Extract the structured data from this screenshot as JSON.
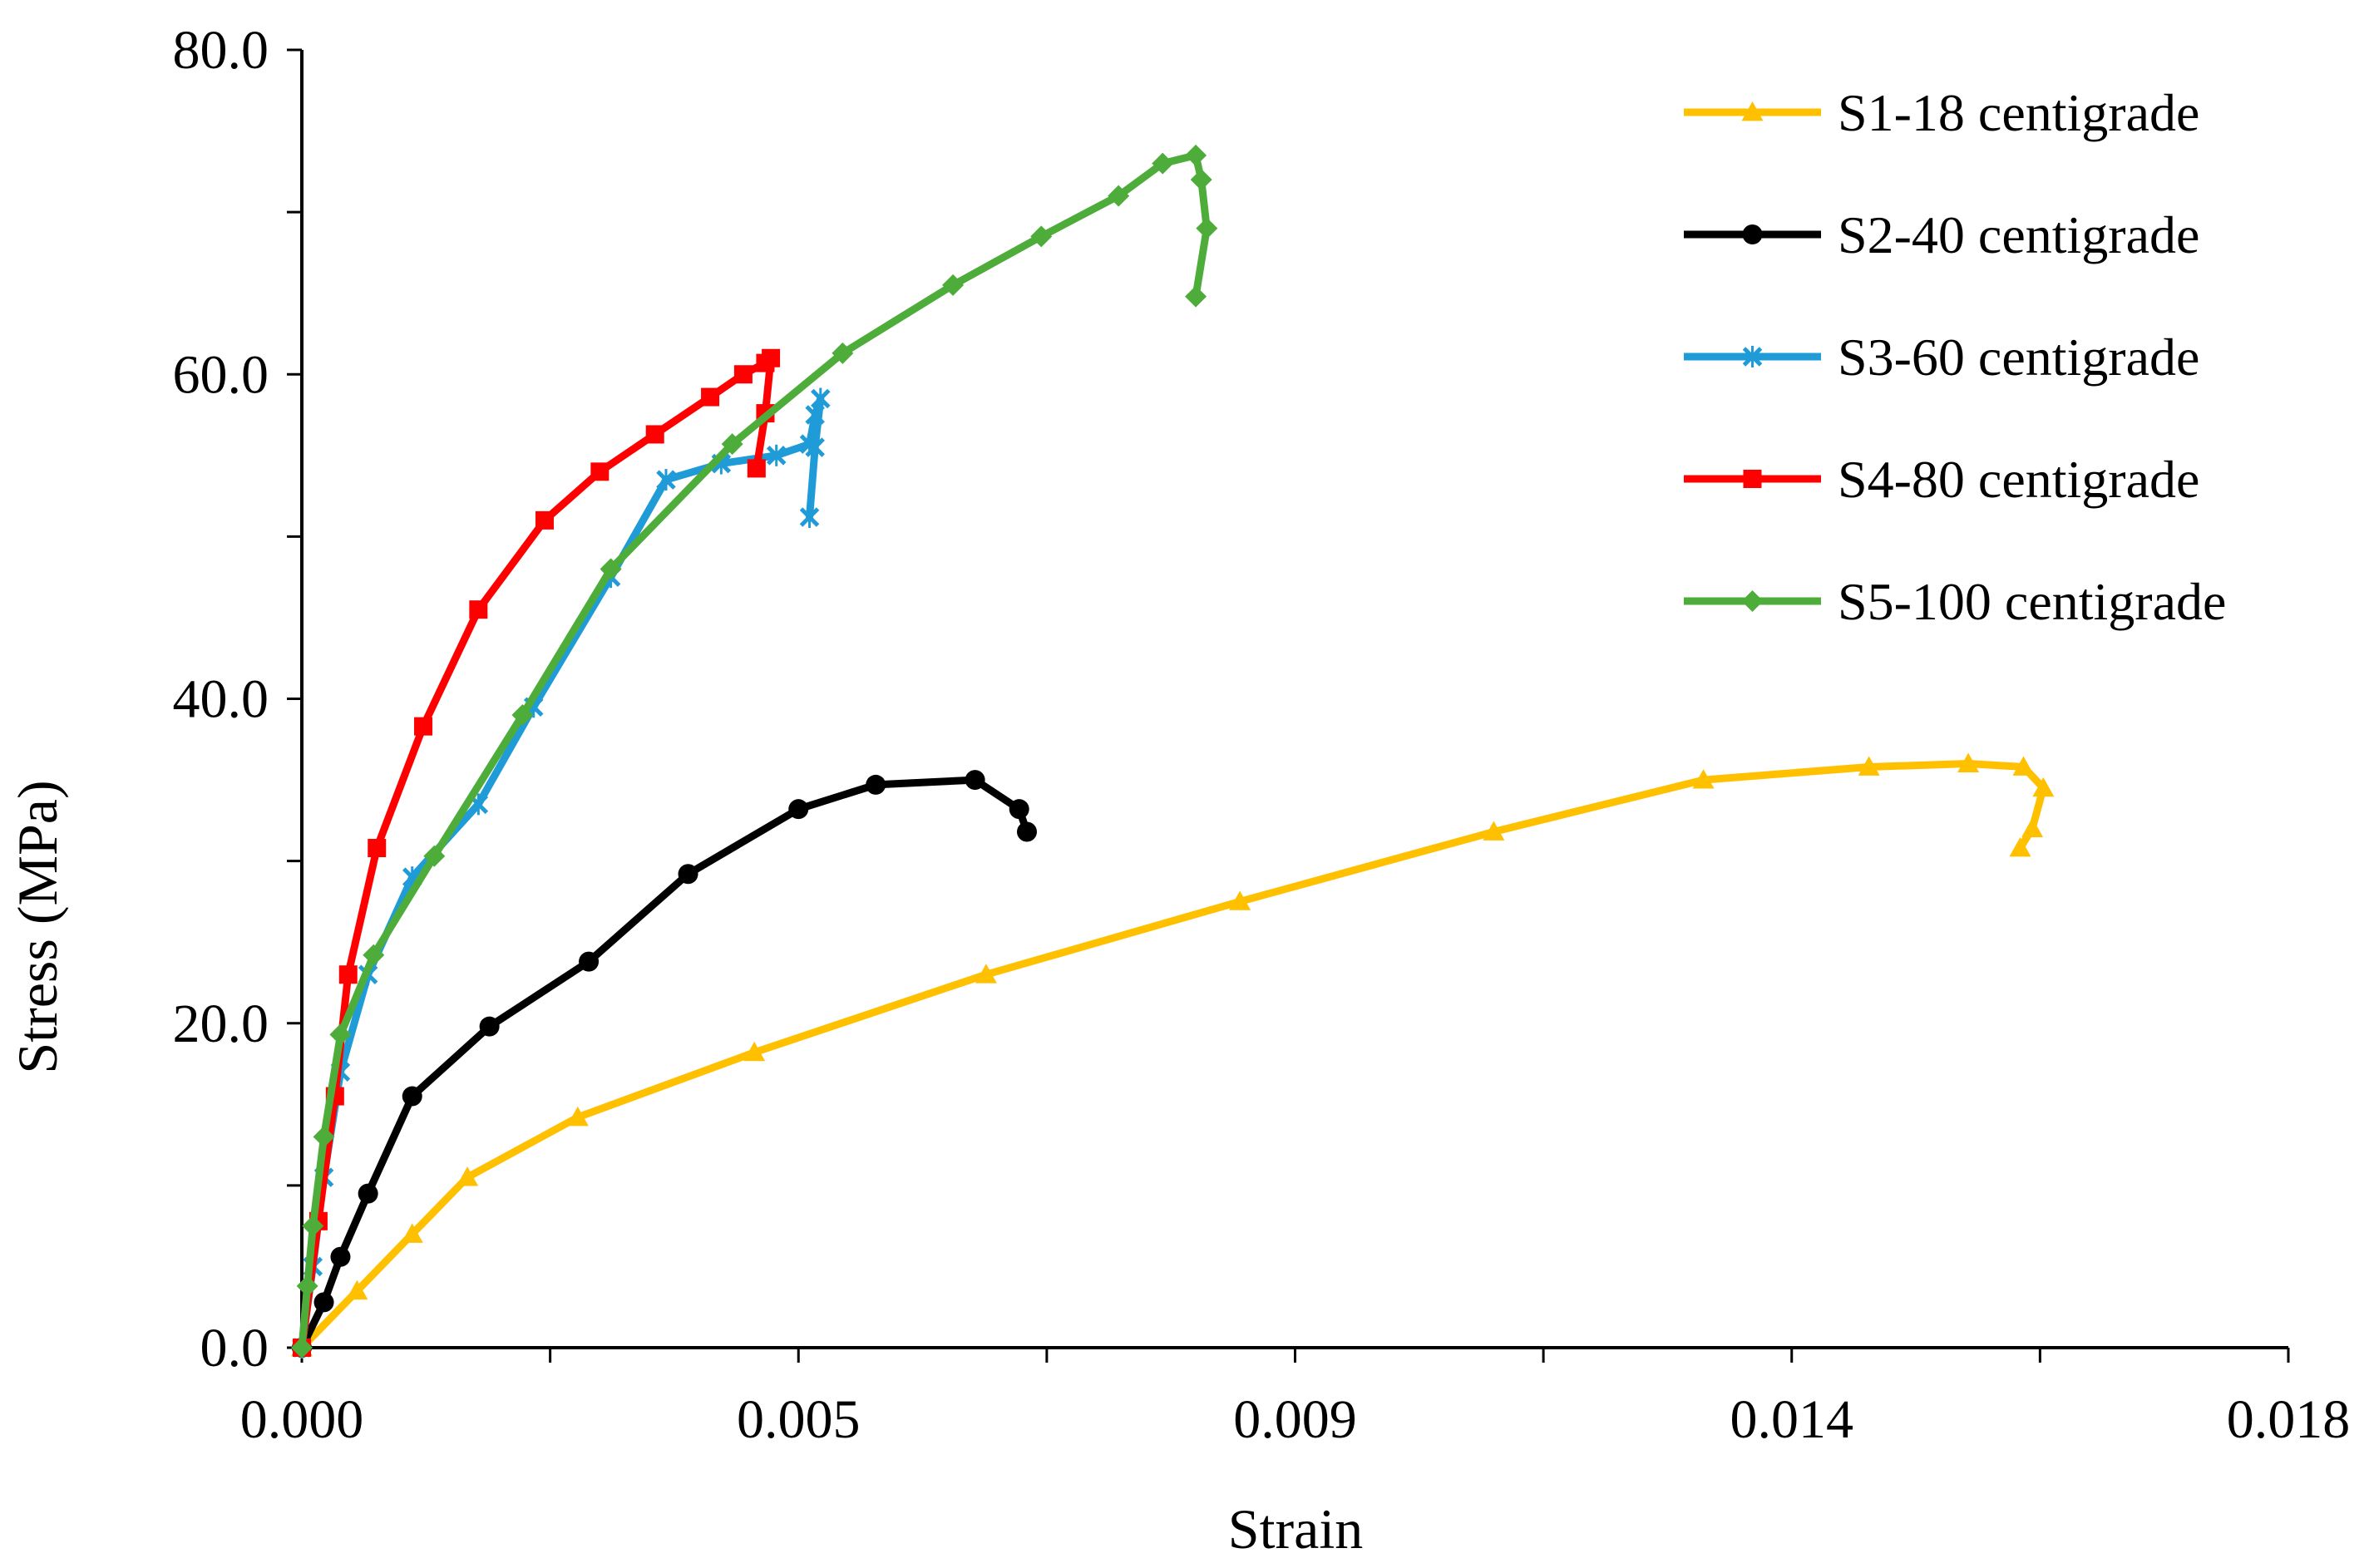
{
  "chart_data": {
    "type": "line",
    "title": "",
    "xlabel": "Strain",
    "ylabel": "Stress (MPa)",
    "xlim": [
      0.0,
      0.018
    ],
    "ylim": [
      0.0,
      80.0
    ],
    "x_major_ticks": [
      0.0,
      0.0045,
      0.009,
      0.0135,
      0.018
    ],
    "x_tick_labels": [
      "0.000",
      "0.005",
      "0.009",
      "0.014",
      "0.018"
    ],
    "y_major_ticks": [
      0,
      20,
      40,
      60,
      80
    ],
    "y_tick_labels": [
      "0.0",
      "20.0",
      "40.0",
      "60.0",
      "80.0"
    ],
    "grid": false,
    "legend_position": "top-right",
    "series": [
      {
        "name": "S1-18 centigrade",
        "color": "#FFC000",
        "marker": "triangle",
        "points": [
          [
            0.0,
            0.0
          ],
          [
            0.0005,
            3.5
          ],
          [
            0.001,
            7.0
          ],
          [
            0.0015,
            10.5
          ],
          [
            0.0025,
            14.2
          ],
          [
            0.0041,
            18.2
          ],
          [
            0.0062,
            23.0
          ],
          [
            0.0085,
            27.5
          ],
          [
            0.0108,
            31.8
          ],
          [
            0.0127,
            35.0
          ],
          [
            0.0142,
            35.8
          ],
          [
            0.0151,
            36.0
          ],
          [
            0.0156,
            35.8
          ],
          [
            0.01578,
            34.5
          ],
          [
            0.01568,
            32.0
          ],
          [
            0.01557,
            30.8
          ]
        ]
      },
      {
        "name": "S2-40 centigrade",
        "color": "#000000",
        "marker": "circle",
        "points": [
          [
            0.0,
            0.0
          ],
          [
            0.0002,
            2.8
          ],
          [
            0.00035,
            5.6
          ],
          [
            0.0006,
            9.5
          ],
          [
            0.001,
            15.5
          ],
          [
            0.0017,
            19.8
          ],
          [
            0.0026,
            23.8
          ],
          [
            0.0035,
            29.2
          ],
          [
            0.0045,
            33.2
          ],
          [
            0.0052,
            34.7
          ],
          [
            0.0061,
            35.0
          ],
          [
            0.0065,
            33.2
          ],
          [
            0.00657,
            31.8
          ]
        ]
      },
      {
        "name": "S3-60 centigrade",
        "color": "#1F9BD7",
        "marker": "x",
        "points": [
          [
            0.0,
            0.0
          ],
          [
            0.0001,
            5.0
          ],
          [
            0.0002,
            10.5
          ],
          [
            0.00035,
            17.0
          ],
          [
            0.0006,
            23.0
          ],
          [
            0.001,
            29.0
          ],
          [
            0.0016,
            33.5
          ],
          [
            0.0021,
            39.5
          ],
          [
            0.0028,
            47.5
          ],
          [
            0.0033,
            53.5
          ],
          [
            0.0038,
            54.5
          ],
          [
            0.0043,
            55.0
          ],
          [
            0.0046,
            55.7
          ],
          [
            0.00465,
            57.5
          ],
          [
            0.0047,
            58.5
          ],
          [
            0.00465,
            55.5
          ],
          [
            0.0046,
            51.2
          ]
        ]
      },
      {
        "name": "S4-80 centigrade",
        "color": "#FF0000",
        "marker": "square",
        "points": [
          [
            0.0,
            0.0
          ],
          [
            0.00015,
            7.8
          ],
          [
            0.0003,
            15.5
          ],
          [
            0.00042,
            23.0
          ],
          [
            0.00068,
            30.8
          ],
          [
            0.0011,
            38.3
          ],
          [
            0.0016,
            45.5
          ],
          [
            0.0022,
            51.0
          ],
          [
            0.0027,
            54.0
          ],
          [
            0.0032,
            56.3
          ],
          [
            0.0037,
            58.6
          ],
          [
            0.004,
            60.0
          ],
          [
            0.0042,
            60.7
          ],
          [
            0.00425,
            61.0
          ],
          [
            0.0042,
            57.6
          ],
          [
            0.00412,
            54.2
          ]
        ]
      },
      {
        "name": "S5-100 centigrade",
        "color": "#4EAD3A",
        "marker": "diamond",
        "points": [
          [
            0.0,
            0.0
          ],
          [
            5e-05,
            3.8
          ],
          [
            0.0001,
            7.5
          ],
          [
            0.0002,
            13.0
          ],
          [
            0.00035,
            19.3
          ],
          [
            0.00065,
            24.2
          ],
          [
            0.0012,
            30.3
          ],
          [
            0.002,
            39.0
          ],
          [
            0.0028,
            48.0
          ],
          [
            0.0039,
            55.7
          ],
          [
            0.0049,
            61.3
          ],
          [
            0.0059,
            65.5
          ],
          [
            0.0067,
            68.5
          ],
          [
            0.0074,
            71.0
          ],
          [
            0.0078,
            73.0
          ],
          [
            0.0081,
            73.5
          ],
          [
            0.00815,
            72.0
          ],
          [
            0.0082,
            69.0
          ],
          [
            0.0081,
            64.8
          ]
        ]
      }
    ]
  }
}
